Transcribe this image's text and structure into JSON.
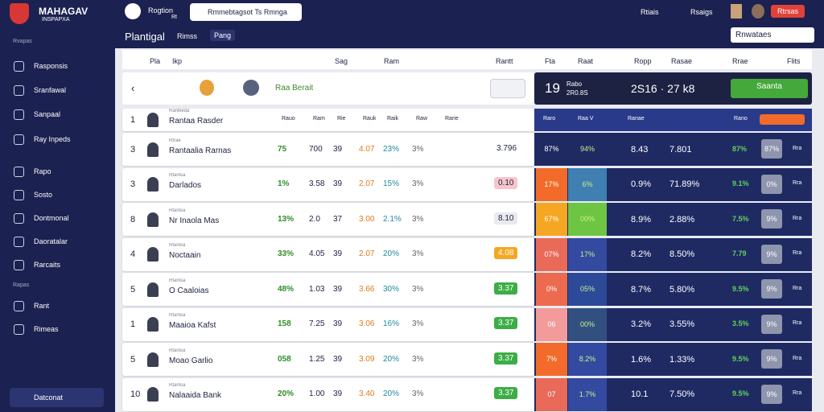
{
  "brand": {
    "title": "MAHAGAV",
    "subtitle": "INSPAPXA"
  },
  "sidebar": {
    "section": "Rvapas",
    "items": [
      "Rasponsis",
      "Sranfawal",
      "Sanpaal",
      "Ray Inpeds",
      "Rapo",
      "Sosto",
      "Dontmonal",
      "Daoratalar",
      "Rarcaits"
    ],
    "section2": "Rapas",
    "items2": [
      "Rant",
      "Rimeas"
    ],
    "footer": "Datconat"
  },
  "topbar": {
    "user": "Rogtion",
    "user_sub": "Rt",
    "search": "Rmmebtagsot Ts Rmnga",
    "links": [
      "Rtiais",
      "Rsaigs"
    ],
    "button": "Rtrsas"
  },
  "page": {
    "title": "Plantigal",
    "tabs": [
      "Rimss",
      "Pang"
    ],
    "dropdown": "Rnwataes"
  },
  "table": {
    "headers": [
      "Pla",
      "Ikp",
      "Sag",
      "Ram",
      "Rantt",
      "Fta",
      "Raat",
      "Ropp",
      "Rasae",
      "Rrae",
      "Flits"
    ],
    "match": {
      "label": "Raa Berait",
      "score": "19",
      "score_label": "Rabo",
      "score_sub": "2R0.8S",
      "time": "2S16 · 27 k8",
      "button": "Saanta"
    },
    "subheaders": [
      "Rauo",
      "Ram",
      "Rie",
      "Rauk",
      "Raik",
      "Raw",
      "Rarie"
    ],
    "panel_subheaders": [
      "Raro",
      "Raa V",
      "Ranae",
      "Rano"
    ],
    "rows": [
      {
        "rank": "1",
        "name": "Rantaa Rasder",
        "team": "Ranlkeda",
        "stats": [],
        "badge": "",
        "panel": [],
        "tag": ""
      },
      {
        "rank": "3",
        "name": "Rantaalia Rarnas",
        "team": "Rtrae",
        "stats": [
          "75",
          "700",
          "39",
          "4.07",
          "23%",
          "3%"
        ],
        "badge": "3.796",
        "panel": [
          "87%",
          "94%",
          "8.43",
          "7.801",
          "87%",
          "87%"
        ],
        "tag": "Rra"
      },
      {
        "rank": "3",
        "name": "Darlados",
        "team": "Rtarlisa",
        "stats": [
          "1%",
          "3.58",
          "39",
          "2.07",
          "15%",
          "3%"
        ],
        "badge": "0.10",
        "panel": [
          "17%",
          "6%",
          "0.9%",
          "71.89%",
          "9.1%",
          "0%"
        ],
        "tag": "Rra"
      },
      {
        "rank": "8",
        "name": "Nr Inaola Mas",
        "team": "Rtarlisa",
        "stats": [
          "13%",
          "2.0",
          "37",
          "3.00",
          "2.1%",
          "3%"
        ],
        "badge": "8.10",
        "panel": [
          "67%",
          "00%",
          "8.9%",
          "2.88%",
          "7.5%",
          "9%"
        ],
        "tag": "Rra"
      },
      {
        "rank": "4",
        "name": "Noctaain",
        "team": "Rtarlisa",
        "stats": [
          "33%",
          "4.05",
          "39",
          "2.07",
          "20%",
          "3%"
        ],
        "badge": "4.08",
        "panel": [
          "07%",
          "17%",
          "8.2%",
          "8.50%",
          "7.79",
          "9%"
        ],
        "tag": "Rra"
      },
      {
        "rank": "5",
        "name": "O Caaloias",
        "team": "Rtarlisa",
        "stats": [
          "48%",
          "1.03",
          "39",
          "3.66",
          "30%",
          "3%"
        ],
        "badge": "3.37",
        "panel": [
          "0%",
          "05%",
          "8.7%",
          "5.80%",
          "9.5%",
          "9%"
        ],
        "tag": "Rra"
      },
      {
        "rank": "1",
        "name": "Maaioa Kafst",
        "team": "Rtarlisa",
        "stats": [
          "158",
          "7.25",
          "39",
          "3.06",
          "16%",
          "3%"
        ],
        "badge": "3.37",
        "panel": [
          "06",
          "00%",
          "3.2%",
          "3.55%",
          "3.5%",
          "9%"
        ],
        "tag": "Rra"
      },
      {
        "rank": "5",
        "name": "Moao Garlio",
        "team": "Rtarlisa",
        "stats": [
          "058",
          "1.25",
          "39",
          "3.09",
          "20%",
          "3%"
        ],
        "badge": "3.37",
        "panel": [
          "7%",
          "8.2%",
          "1.6%",
          "1.33%",
          "9.5%",
          "9%"
        ],
        "tag": "Rra"
      },
      {
        "rank": "10",
        "name": "Nalaaida Bank",
        "team": "Rtarlisa",
        "stats": [
          "20%",
          "1.00",
          "39",
          "3.40",
          "20%",
          "3%"
        ],
        "badge": "3.37",
        "panel": [
          "07",
          "1.7%",
          "10.1",
          "7.50%",
          "9.5%",
          "9%"
        ],
        "tag": "Rra"
      }
    ]
  }
}
